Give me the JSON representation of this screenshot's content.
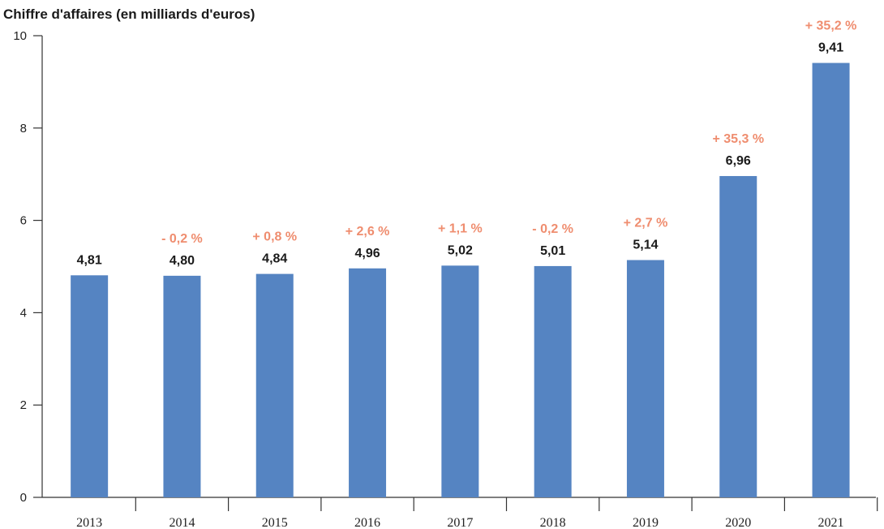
{
  "chart_data": {
    "type": "bar",
    "title": "Chiffre d'affaires (en milliards d'euros)",
    "categories": [
      "2013",
      "2014",
      "2015",
      "2016",
      "2017",
      "2018",
      "2019",
      "2020",
      "2021"
    ],
    "values": [
      4.81,
      4.8,
      4.84,
      4.96,
      5.02,
      5.01,
      5.14,
      6.96,
      9.41
    ],
    "value_labels": [
      "4,81",
      "4,80",
      "4,84",
      "4,96",
      "5,02",
      "5,01",
      "5,14",
      "6,96",
      "9,41"
    ],
    "growth_labels": [
      "",
      "- 0,2 %",
      "+ 0,8 %",
      "+ 2,6 %",
      "+ 1,1 %",
      "- 0,2 %",
      "+ 2,7 %",
      "+ 35,3 %",
      "+ 35,2 %"
    ],
    "yticks": [
      "0",
      "2",
      "4",
      "6",
      "8",
      "10"
    ],
    "ylim": [
      0,
      10
    ],
    "grid": false,
    "bar_color": "#5584c2",
    "growth_color": "#ef8d6f"
  }
}
